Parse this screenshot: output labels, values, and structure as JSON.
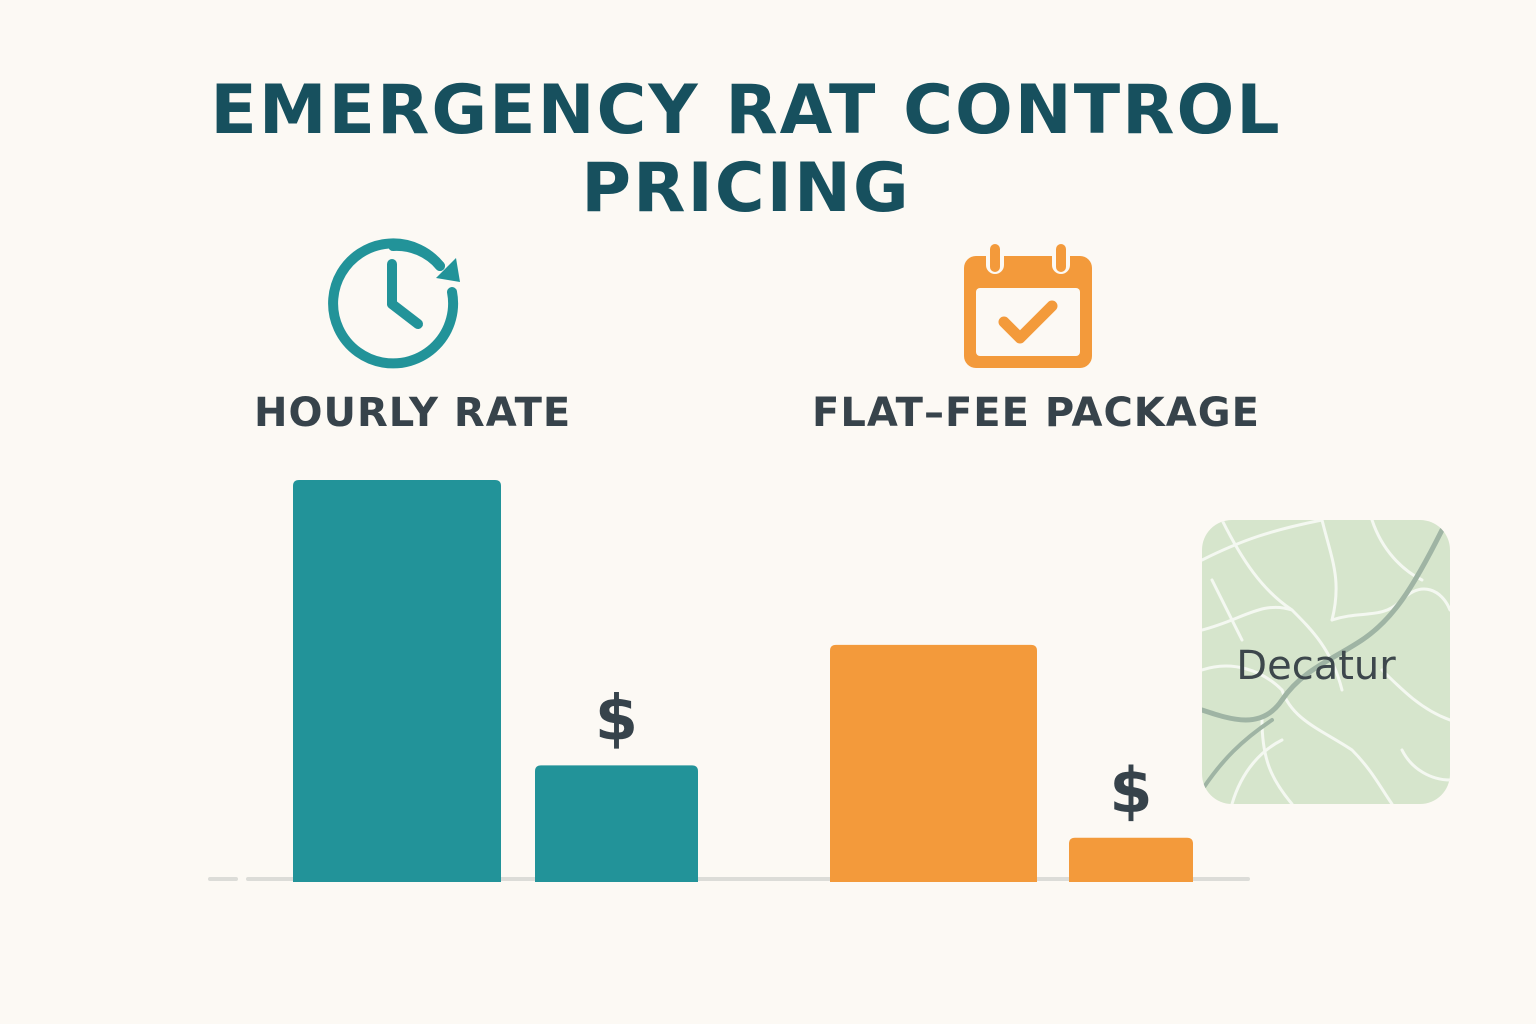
{
  "title": {
    "line1": "EMERGENCY RAT CONTROL",
    "line2": "PRICING"
  },
  "sections": [
    {
      "label": "HOURLY RATE",
      "icon": "clock-refresh-icon",
      "color": "#229399"
    },
    {
      "label": "FLAT–FEE PACKAGE",
      "icon": "calendar-check-icon",
      "color": "#f39a3b"
    }
  ],
  "map": {
    "label": "Decatur",
    "icon": "map-icon"
  },
  "chart_data": {
    "type": "bar",
    "title": "EMERGENCY RAT CONTROL PRICING",
    "xlabel": "",
    "ylabel": "",
    "ylim": [
      0,
      100
    ],
    "grid": false,
    "legend": "none",
    "groups": [
      {
        "name": "HOURLY RATE",
        "color": "#229399",
        "values": [
          100,
          29
        ],
        "value_labels": [
          "",
          "$"
        ]
      },
      {
        "name": "FLAT–FEE PACKAGE",
        "color": "#f39a3b",
        "values": [
          59,
          11
        ],
        "value_labels": [
          "",
          "$"
        ]
      }
    ]
  }
}
